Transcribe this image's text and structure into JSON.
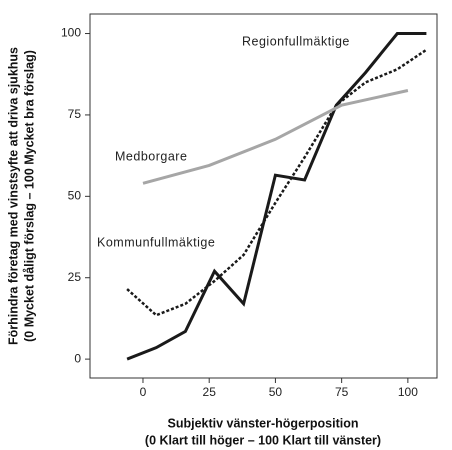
{
  "chart_data": {
    "type": "line",
    "xlabel": [
      "Subjektiv vänster-högerposition",
      "(0 Klart till höger – 100 Klart till vänster)"
    ],
    "ylabel": [
      "Förhindra företag med vinstsyfte att driva sjukhus",
      "(0 Mycket dåligt förslag – 100 Mycket bra förslag)"
    ],
    "xlim": [
      -20,
      111
    ],
    "ylim": [
      -5.8,
      106
    ],
    "xticks": [
      0,
      25,
      50,
      75,
      100
    ],
    "yticks": [
      0,
      25,
      50,
      75,
      100
    ],
    "series": [
      {
        "name": "Regionfullmäktige",
        "color": "#1a1a1a",
        "style": "solid",
        "x": [
          -6,
          5,
          16,
          27,
          38,
          50,
          61,
          73,
          84,
          96,
          107
        ],
        "values": [
          0,
          3.5,
          8.5,
          27,
          17,
          56.5,
          55,
          78,
          88,
          100,
          100
        ]
      },
      {
        "name": "Kommunfullmäktige",
        "color": "#1a1a1a",
        "style": "dotted",
        "x": [
          -6,
          5,
          16,
          27,
          38,
          50,
          61,
          73,
          84,
          96,
          107
        ],
        "values": [
          21.5,
          13.5,
          17,
          24,
          32,
          48,
          62,
          78,
          85,
          89,
          95
        ]
      },
      {
        "name": "Medborgare",
        "color": "#a6a6a6",
        "style": "solid",
        "x": [
          0,
          25,
          50,
          75,
          100
        ],
        "values": [
          54,
          59.5,
          67.5,
          78,
          82.5
        ]
      }
    ]
  }
}
